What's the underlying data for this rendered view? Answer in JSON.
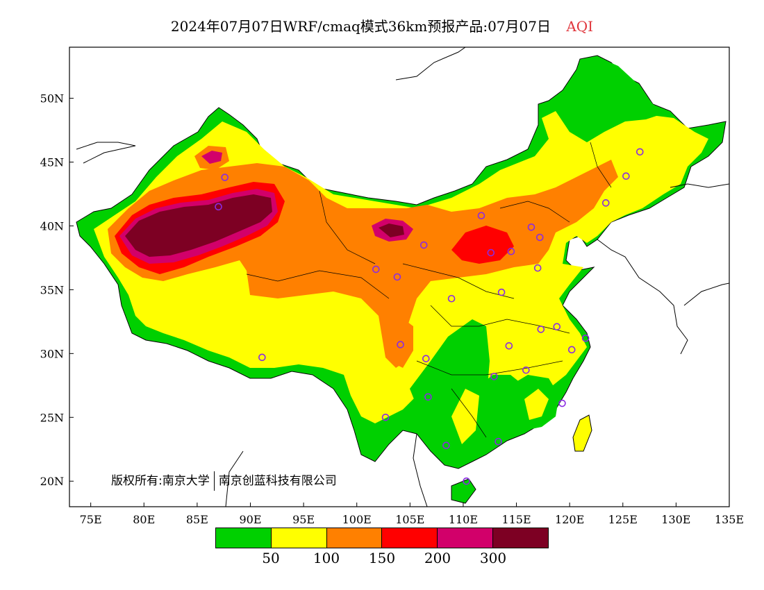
{
  "header": {
    "title": "2024年07月07日WRF/cmaq模式36km预报产品:07月07日",
    "variable": "AQI",
    "variable_color": "#e0363c"
  },
  "map": {
    "lat_ticks": [
      "50N",
      "45N",
      "40N",
      "35N",
      "30N",
      "25N",
      "20N"
    ],
    "lon_ticks": [
      "75E",
      "80E",
      "85E",
      "90E",
      "95E",
      "100E",
      "105E",
      "110E",
      "115E",
      "120E",
      "125E",
      "130E",
      "135E"
    ],
    "lon_range": [
      73,
      135
    ],
    "lat_range": [
      18,
      54
    ],
    "station_marker_color": "#8a2be2",
    "copyright": "版权所有:南京大学",
    "copyright_company": "南京创蓝科技有限公司"
  },
  "legend": {
    "colors": [
      "#00d000",
      "#ffff00",
      "#ff8000",
      "#ff0000",
      "#d2006a",
      "#7d0023"
    ],
    "labels": [
      "50",
      "100",
      "150",
      "200",
      "300"
    ]
  }
}
